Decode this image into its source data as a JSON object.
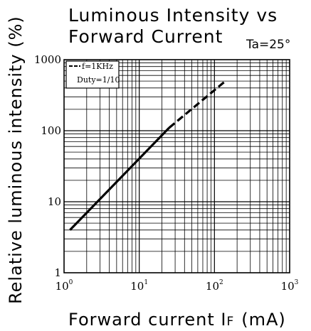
{
  "chart_data": {
    "type": "line",
    "title": [
      "Luminous Intensity vs",
      "Forward Current"
    ],
    "condition": "Ta=25°",
    "xlabel": "Forward current I",
    "xlabel_sub": "F",
    "xlabel_unit": "(mA)",
    "ylabel": "Relative luminous intensity (%)",
    "xscale": "log",
    "yscale": "log",
    "xlim": [
      1,
      1000
    ],
    "ylim": [
      1,
      1000
    ],
    "x_ticks": [
      {
        "base": "10",
        "exp": "0",
        "value": 1
      },
      {
        "base": "10",
        "exp": "1",
        "value": 10
      },
      {
        "base": "10",
        "exp": "2",
        "value": 100
      },
      {
        "base": "10",
        "exp": "3",
        "value": 1000
      }
    ],
    "y_ticks": [
      {
        "label": "1",
        "value": 1
      },
      {
        "label": "10",
        "value": 10
      },
      {
        "label": "100",
        "value": 100
      },
      {
        "label": "1000",
        "value": 1000
      }
    ],
    "grid": true,
    "legend": {
      "placement": "top-left",
      "lines": [
        "f=1KHz",
        "Duty=1/10"
      ]
    },
    "series": [
      {
        "style": "solid",
        "x": [
          1.2,
          25
        ],
        "y": [
          4,
          110
        ]
      },
      {
        "style": "dashed",
        "x": [
          25,
          140
        ],
        "y": [
          110,
          500
        ]
      }
    ]
  }
}
